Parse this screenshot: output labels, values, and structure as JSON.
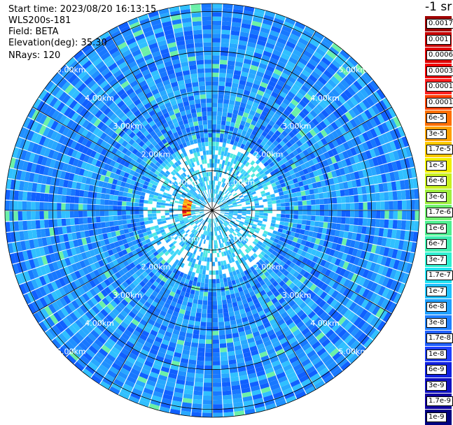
{
  "header": {
    "start_time": "Start time: 2023/08/20 16:13:15",
    "instrument": "WLS200s-181",
    "field": "Field: BETA",
    "elevation": "Elevation(deg): 35.30",
    "nrays": "NRays: 120"
  },
  "colorbar": {
    "unit_label": "-1 sr",
    "ticks": [
      "0.0017",
      "0.001",
      "0.0006",
      "0.0003",
      "0.00017",
      "0.0001",
      "6e-5",
      "3e-5",
      "1.7e-5",
      "1e-5",
      "6e-6",
      "3e-6",
      "1.7e-6",
      "1e-6",
      "6e-7",
      "3e-7",
      "1.7e-7",
      "1e-7",
      "6e-8",
      "3e-8",
      "1.7e-8",
      "1e-8",
      "6e-9",
      "3e-9",
      "1.7e-9",
      "1e-9"
    ],
    "colors": [
      "#a00000",
      "#c80000",
      "#e00000",
      "#f00000",
      "#ff2020",
      "#ff4000",
      "#ff7000",
      "#ffa000",
      "#ffc800",
      "#f0f000",
      "#c8f020",
      "#a0f040",
      "#70f070",
      "#50f090",
      "#40f0b0",
      "#30f0d0",
      "#20e0f0",
      "#20c0ff",
      "#20a0ff",
      "#2080ff",
      "#2060ff",
      "#2040ff",
      "#1020e0",
      "#1010c0",
      "#1000a0",
      "#000080"
    ]
  },
  "chart_data": {
    "type": "heatmap",
    "title": "",
    "projection": "polar (PPI scan)",
    "nrays": 120,
    "range_rings_km": [
      1,
      2,
      3,
      4,
      5
    ],
    "ring_labels": [
      "1.00km",
      "2.00km",
      "3.00km",
      "4.00km",
      "5.00km"
    ],
    "max_range_km": 5.2,
    "field": "BETA",
    "units": "-1 sr",
    "dominant_value": "1e-8 to 3e-7 (blue-cyan)",
    "notable_features": [
      {
        "description": "high backscatter arc",
        "range_km": "0.5-0.7",
        "azimuth_deg": "260-290",
        "value": "3e-5 to 0.0001"
      }
    ]
  }
}
